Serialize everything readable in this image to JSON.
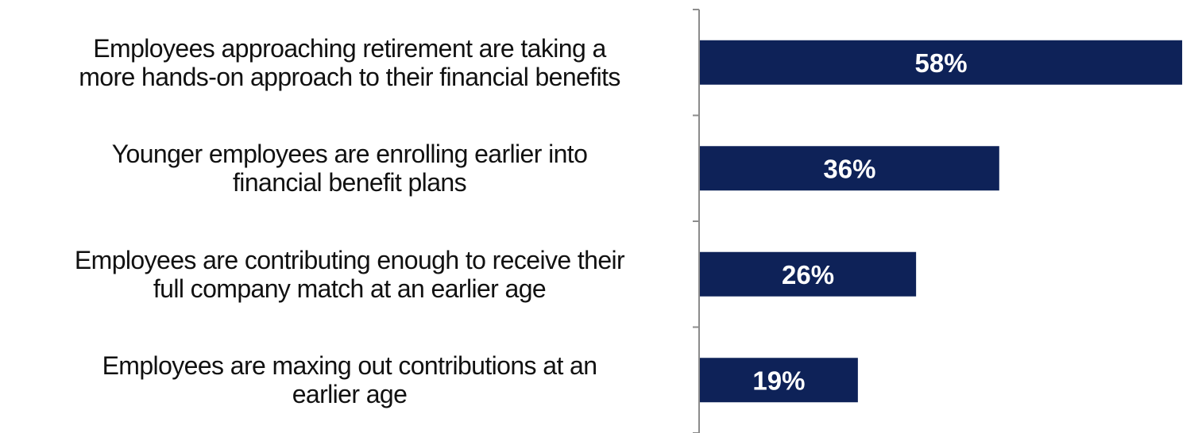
{
  "chart_data": {
    "type": "bar",
    "orientation": "horizontal",
    "categories": [
      "Employees approaching retirement are taking a more hands-on approach to their financial benefits",
      "Younger employees are enrolling earlier into financial benefit plans",
      "Employees are contributing enough to receive their full company match at an earlier age",
      "Employees are maxing out contributions at an earlier age"
    ],
    "category_lines": [
      [
        "Employees approaching retirement are taking a",
        "more hands-on approach to their financial benefits"
      ],
      [
        "Younger employees are enrolling earlier into",
        "financial benefit plans"
      ],
      [
        "Employees are contributing enough to receive their",
        "full company match at an earlier age"
      ],
      [
        "Employees are maxing out contributions at an",
        "earlier age"
      ]
    ],
    "values": [
      58,
      36,
      26,
      19
    ],
    "value_labels": [
      "58%",
      "36%",
      "26%",
      "19%"
    ],
    "title": "",
    "xlabel": "",
    "ylabel": "",
    "xlim": [
      0,
      60
    ],
    "grid": false,
    "legend": "none",
    "bar_color": "#0e2258",
    "label_color": "#ffffff"
  }
}
